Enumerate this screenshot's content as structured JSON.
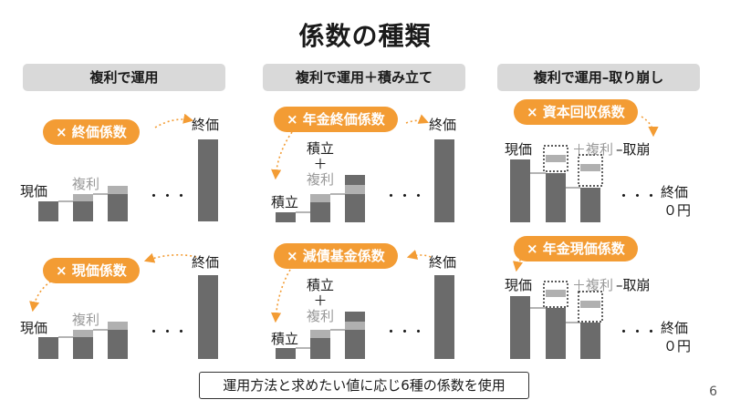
{
  "title": "係数の種類",
  "headers": [
    "複利で運用",
    "複利で運用＋積み立て",
    "複利で運用–取り崩し"
  ],
  "pills": {
    "shuka": "×  終価係数",
    "genka": "×  現価係数",
    "nenkin_shuka": "×  年金終価係数",
    "gensai": "×  減債基金係数",
    "shihon_kaishu": "×  資本回収係数",
    "nenkin_genka": "×  年金現価係数"
  },
  "labels": {
    "genka": "現価",
    "fukuri": "複利",
    "shuka": "終価",
    "dots": "・・・",
    "tsumitate": "積立",
    "plus": "＋",
    "plus_fukuri": "＋複利",
    "minus_torikuzushi": "–取崩",
    "zero_en": "０円"
  },
  "bottom_note": "運用方法と求めたい値に応じ6種の係数を使用",
  "page_number": "6",
  "colors": {
    "orange": "#f39c34",
    "bar": "#6b6b6b",
    "bar_light": "#b0b0b0",
    "header_bg": "#d9d9d9"
  }
}
